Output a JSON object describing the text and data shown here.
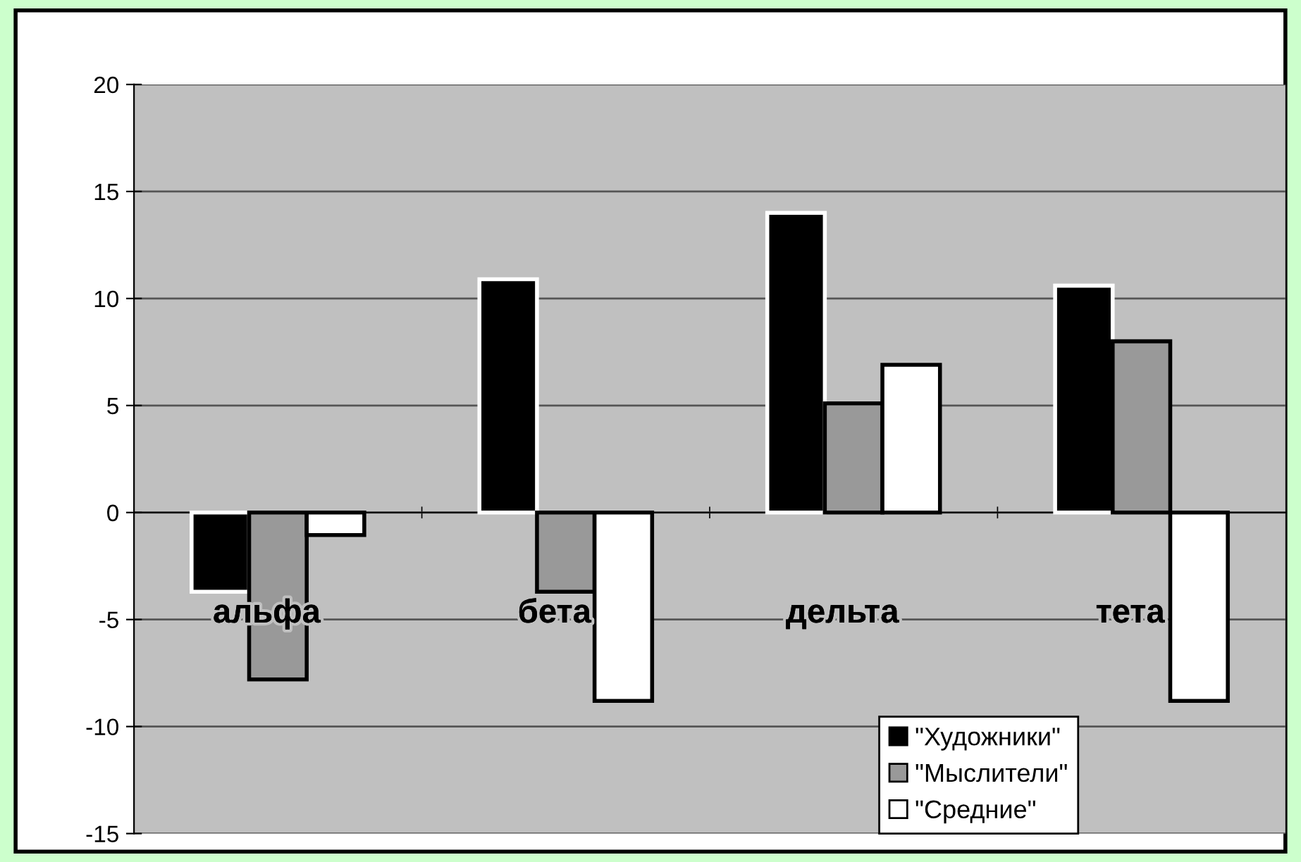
{
  "chart_data": {
    "type": "bar",
    "categories": [
      "альфа",
      "бета",
      "дельта",
      "тета"
    ],
    "series": [
      {
        "name": "\"Художники\"",
        "color": "#000000",
        "values": [
          -3.7,
          10.9,
          14.0,
          10.6
        ]
      },
      {
        "name": "\"Мыслители\"",
        "color": "#999999",
        "values": [
          -7.8,
          -3.7,
          5.1,
          8.0
        ]
      },
      {
        "name": "\"Средние\"",
        "color": "#ffffff",
        "values": [
          -1.05,
          -8.8,
          6.9,
          -8.8
        ]
      }
    ],
    "ylim": [
      -15,
      20
    ],
    "yticks": [
      -15,
      -10,
      -5,
      0,
      5,
      10,
      15,
      20
    ],
    "grid": "y",
    "legend": "bottom right"
  }
}
